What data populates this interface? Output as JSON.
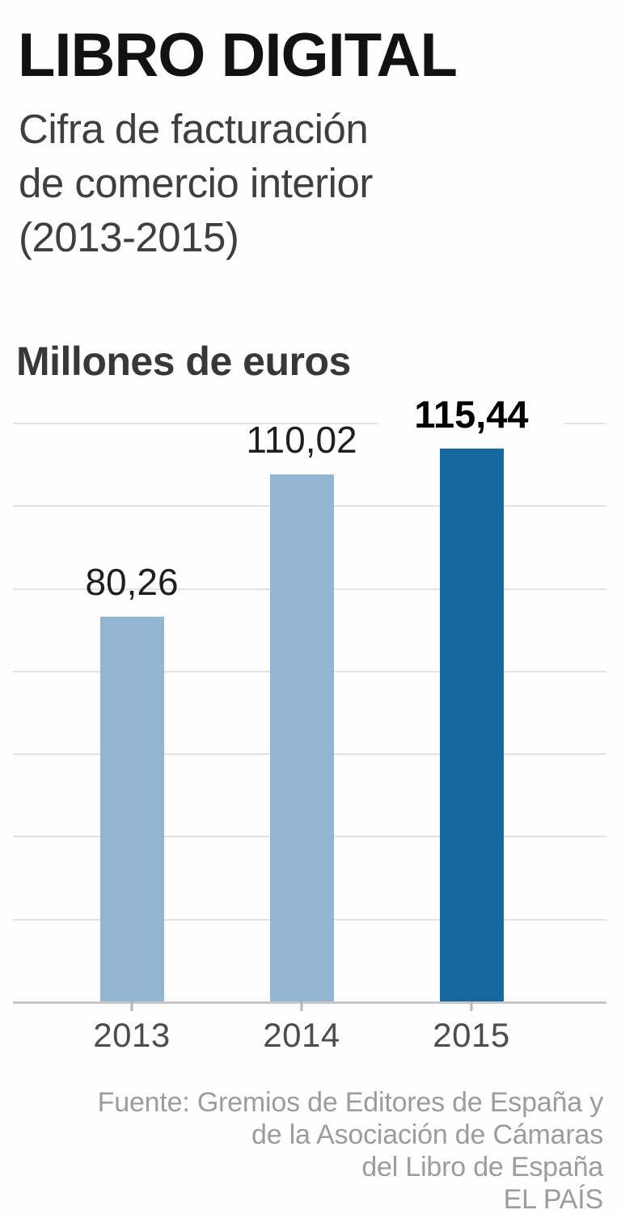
{
  "header": {
    "title": "LIBRO DIGITAL",
    "subtitle_lines": [
      "Cifra de facturación",
      "de comercio interior",
      "(2013-2015)"
    ]
  },
  "chart_data": {
    "type": "bar",
    "title": "Millones de euros",
    "categories": [
      "2013",
      "2014",
      "2015"
    ],
    "values": [
      80.26,
      110.02,
      115.44
    ],
    "value_labels": [
      "80,26",
      "110,02",
      "115,44"
    ],
    "emphasis_index": 2,
    "ylim": [
      0,
      121
    ],
    "grid": true,
    "gridline_count": 8,
    "legend_position": "none",
    "xlabel": "",
    "ylabel": "Millones de euros",
    "colors": {
      "bar_light": "#92b5d1",
      "bar_emphasis": "#16699f",
      "gridline": "#e3e3e3",
      "axis": "#c6c6c6"
    }
  },
  "footer": {
    "source_lines": [
      "Fuente: Gremios de Editores de España y",
      "de la Asociación de Cámaras",
      "del Libro de España"
    ],
    "credit": "EL PAÍS"
  }
}
